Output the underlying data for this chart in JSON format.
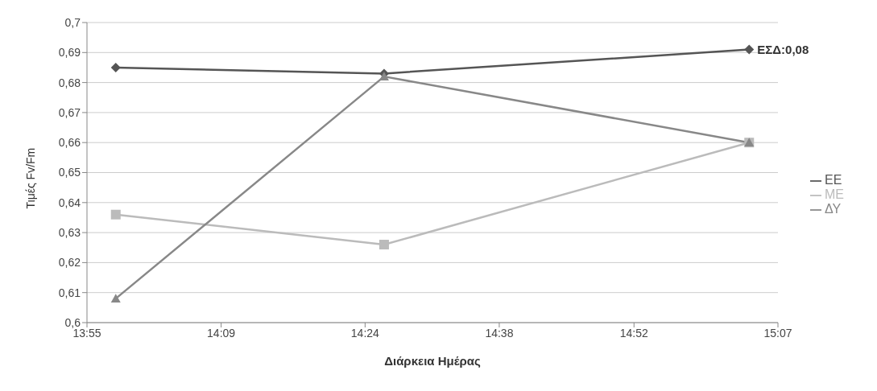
{
  "chart_data": {
    "type": "line",
    "xlabel": "Διάρκεια Ημέρας",
    "ylabel": "Τιμές Fv/Fm",
    "x": [
      13.967,
      14.433,
      15.067
    ],
    "series": [
      {
        "name": "ΕΕ",
        "color": "#555555",
        "marker": "diamond",
        "values": [
          0.685,
          0.683,
          0.691
        ]
      },
      {
        "name": "ΜΕ",
        "color": "#bbbbbb",
        "marker": "square",
        "values": [
          0.636,
          0.626,
          0.66
        ]
      },
      {
        "name": "ΔΥ",
        "color": "#888888",
        "marker": "triangle",
        "values": [
          0.608,
          0.682,
          0.66
        ]
      }
    ],
    "xlim": [
      13.917,
      15.117
    ],
    "xticks": [
      {
        "value": 13.917,
        "label": "13:55"
      },
      {
        "value": 14.15,
        "label": "14:09"
      },
      {
        "value": 14.4,
        "label": "14:24"
      },
      {
        "value": 14.633,
        "label": "14:38"
      },
      {
        "value": 14.867,
        "label": "14:52"
      },
      {
        "value": 15.117,
        "label": "15:07"
      }
    ],
    "ylim": [
      0.6,
      0.7
    ],
    "yticks": [
      {
        "value": 0.6,
        "label": "0,6"
      },
      {
        "value": 0.61,
        "label": "0,61"
      },
      {
        "value": 0.62,
        "label": "0,62"
      },
      {
        "value": 0.63,
        "label": "0,63"
      },
      {
        "value": 0.64,
        "label": "0,64"
      },
      {
        "value": 0.65,
        "label": "0,65"
      },
      {
        "value": 0.66,
        "label": "0,66"
      },
      {
        "value": 0.67,
        "label": "0,67"
      },
      {
        "value": 0.68,
        "label": "0,68"
      },
      {
        "value": 0.69,
        "label": "0,69"
      },
      {
        "value": 0.7,
        "label": "0,7"
      }
    ],
    "annotations": [
      {
        "text": "ΕΣΔ:0,08",
        "x": 15.067,
        "y": 0.691
      }
    ],
    "grid": "y",
    "legend": "right",
    "line_style": "solid"
  }
}
